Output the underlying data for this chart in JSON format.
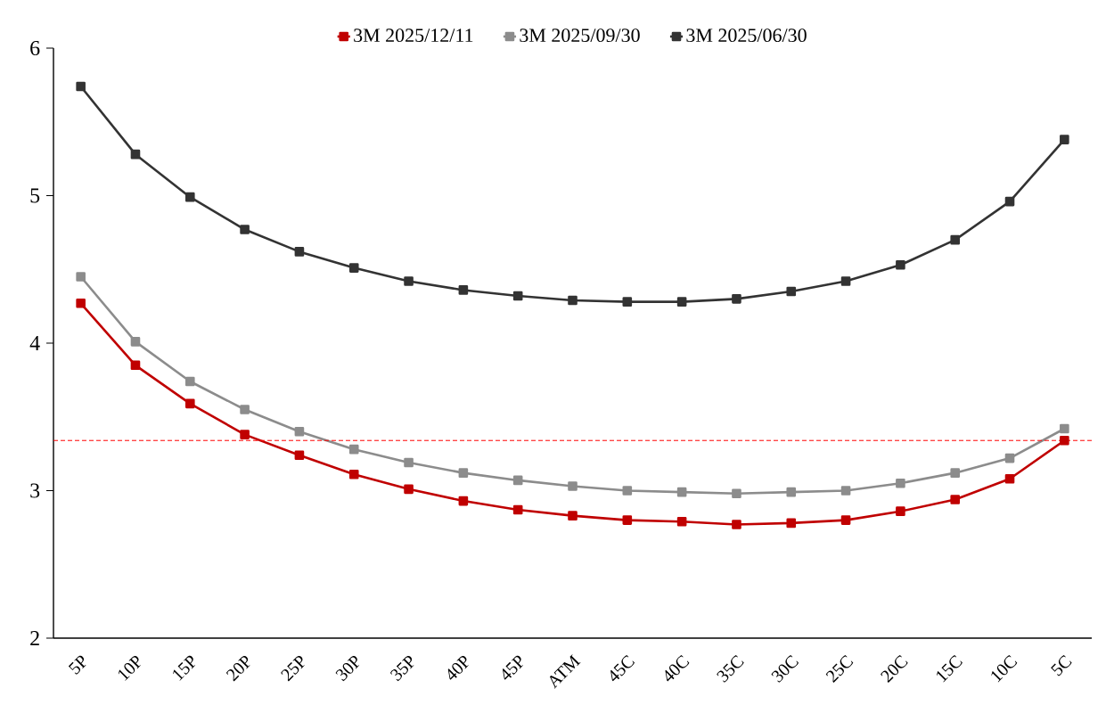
{
  "chart_data": {
    "type": "line",
    "categories": [
      "5P",
      "10P",
      "15P",
      "20P",
      "25P",
      "30P",
      "35P",
      "40P",
      "45P",
      "ATM",
      "45C",
      "40C",
      "35C",
      "30C",
      "25C",
      "20C",
      "15C",
      "10C",
      "5C"
    ],
    "series": [
      {
        "name": "3M 2025/12/11",
        "color": "#c00000",
        "values": [
          4.27,
          3.85,
          3.59,
          3.38,
          3.24,
          3.11,
          3.01,
          2.93,
          2.87,
          2.83,
          2.8,
          2.79,
          2.77,
          2.78,
          2.8,
          2.86,
          2.94,
          3.08,
          3.34
        ]
      },
      {
        "name": "3M 2025/09/30",
        "color": "#8c8c8c",
        "values": [
          4.45,
          4.01,
          3.74,
          3.55,
          3.4,
          3.28,
          3.19,
          3.12,
          3.07,
          3.03,
          3.0,
          2.99,
          2.98,
          2.99,
          3.0,
          3.05,
          3.12,
          3.22,
          3.42
        ]
      },
      {
        "name": "3M 2025/06/30",
        "color": "#333333",
        "values": [
          5.74,
          5.28,
          4.99,
          4.77,
          4.62,
          4.51,
          4.42,
          4.36,
          4.32,
          4.29,
          4.28,
          4.28,
          4.3,
          4.35,
          4.42,
          4.53,
          4.7,
          4.96,
          5.38
        ]
      }
    ],
    "ylim": [
      2,
      6
    ],
    "yticks": [
      2,
      3,
      4,
      5,
      6
    ],
    "ref_lines": [
      {
        "axis": "y",
        "value": 3.34,
        "color": "#ff0000",
        "line_style": "dashed"
      }
    ],
    "marker": "square",
    "line_style": "solid",
    "grid": false,
    "legend": "top"
  }
}
